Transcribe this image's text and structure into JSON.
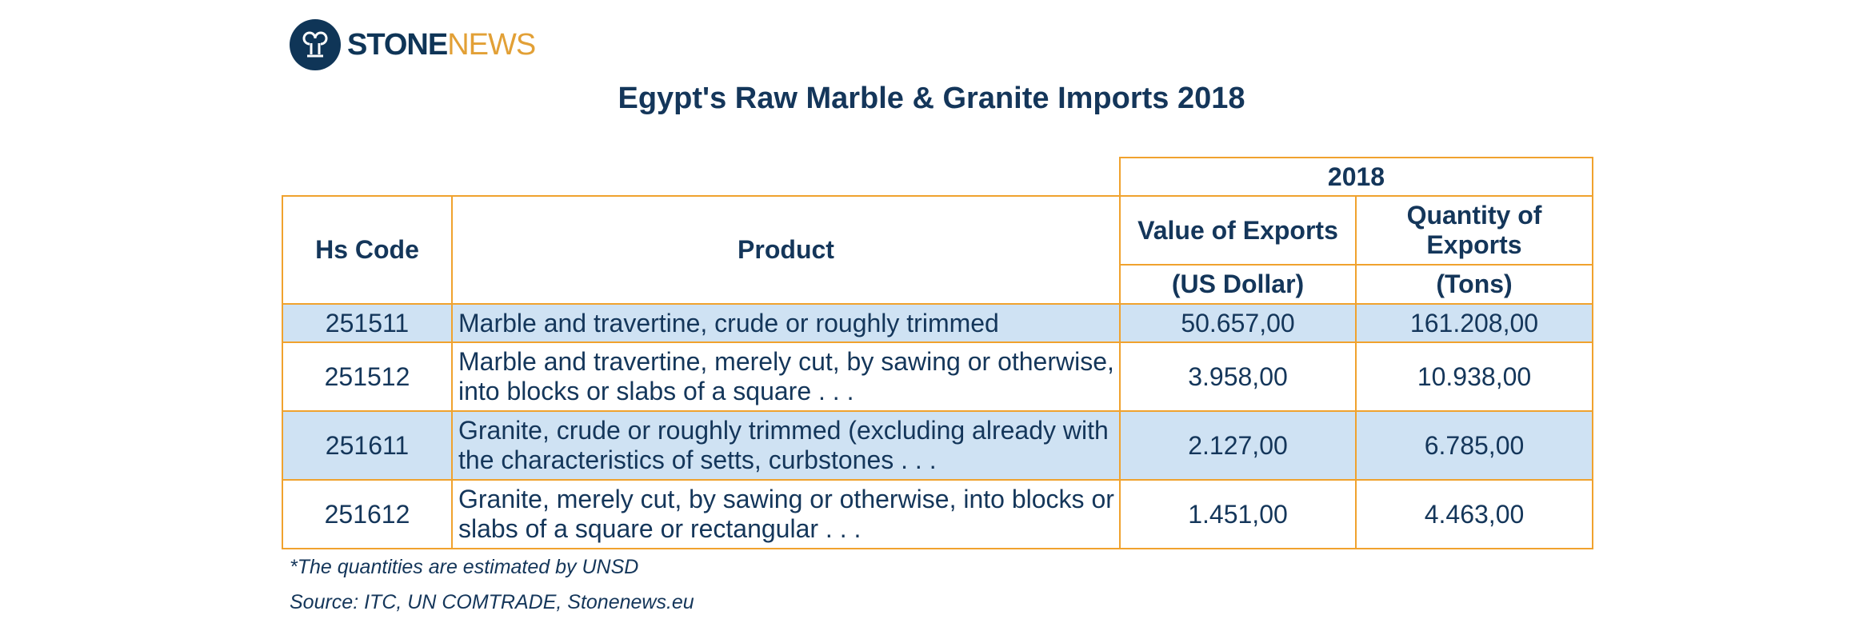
{
  "logo": {
    "brand_part1": "STONE",
    "brand_part2": "NEWS",
    "icon": "stonenews-column-logo-icon",
    "colors": {
      "navy": "#0f3557",
      "orange": "#e2a036"
    }
  },
  "title": "Egypt's Raw Marble & Granite Imports 2018",
  "table": {
    "year_header": "2018",
    "columns": {
      "hs_code": "Hs Code",
      "product": "Product",
      "value": "Value of Exports",
      "value_unit": "(US Dollar)",
      "quantity": "Quantity of Exports",
      "quantity_unit": "(Tons)"
    },
    "rows": [
      {
        "code": "251511",
        "product": "Marble and travertine, crude or roughly trimmed",
        "value": "50.657,00",
        "quantity": "161.208,00"
      },
      {
        "code": "251512",
        "product": "Marble and travertine, merely cut, by sawing or otherwise, into blocks or slabs of a square . . .",
        "value": "3.958,00",
        "quantity": "10.938,00"
      },
      {
        "code": "251611",
        "product": "Granite, crude or roughly trimmed (excluding already with the characteristics of setts, curbstones . . .",
        "value": "2.127,00",
        "quantity": "6.785,00"
      },
      {
        "code": "251612",
        "product": "Granite, merely cut, by sawing or otherwise, into blocks or slabs of a square or rectangular . . .",
        "value": "1.451,00",
        "quantity": "4.463,00"
      }
    ],
    "colors": {
      "border": "#f0a22e",
      "shaded_row": "#cfe2f3",
      "text": "#14365a"
    }
  },
  "footnote": "*The quantities are estimated by UNSD",
  "source": "Source: ITC, UN COMTRADE, Stonenews.eu"
}
